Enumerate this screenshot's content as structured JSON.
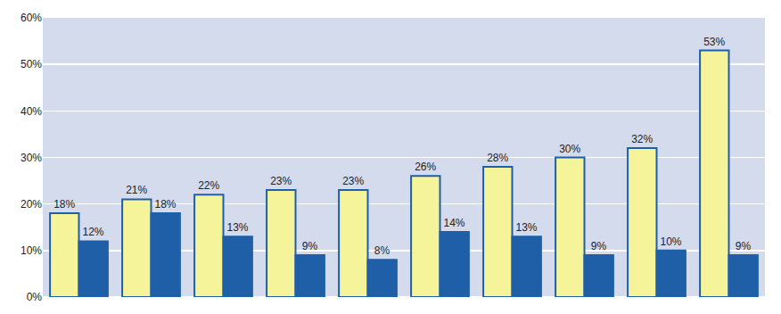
{
  "chart_data": {
    "type": "bar",
    "categories": [
      null,
      null,
      null,
      null,
      null,
      null,
      null,
      null,
      null,
      null
    ],
    "series": [
      {
        "color": "#f6f49b",
        "values": [
          18,
          21,
          22,
          23,
          23,
          26,
          28,
          30,
          32,
          53
        ],
        "value_labels": [
          "18%",
          "21%",
          "22%",
          "23%",
          "23%",
          "26%",
          "28%",
          "30%",
          "32%",
          "53%"
        ]
      },
      {
        "color": "#1f5fa8",
        "values": [
          12,
          18,
          13,
          9,
          8,
          14,
          13,
          9,
          10,
          9
        ],
        "value_labels": [
          "12%",
          "18%",
          "13%",
          "9%",
          "8%",
          "14%",
          "13%",
          "9%",
          "10%",
          "9%"
        ]
      }
    ],
    "ylim": [
      0,
      60
    ],
    "yticks": [
      {
        "value": 0,
        "label": "0%"
      },
      {
        "value": 10,
        "label": "10%"
      },
      {
        "value": 20,
        "label": "20%"
      },
      {
        "value": 30,
        "label": "30%"
      },
      {
        "value": 40,
        "label": "40%"
      },
      {
        "value": 50,
        "label": "50%"
      },
      {
        "value": 60,
        "label": "60%"
      }
    ],
    "grid": true,
    "data_labels": true
  }
}
